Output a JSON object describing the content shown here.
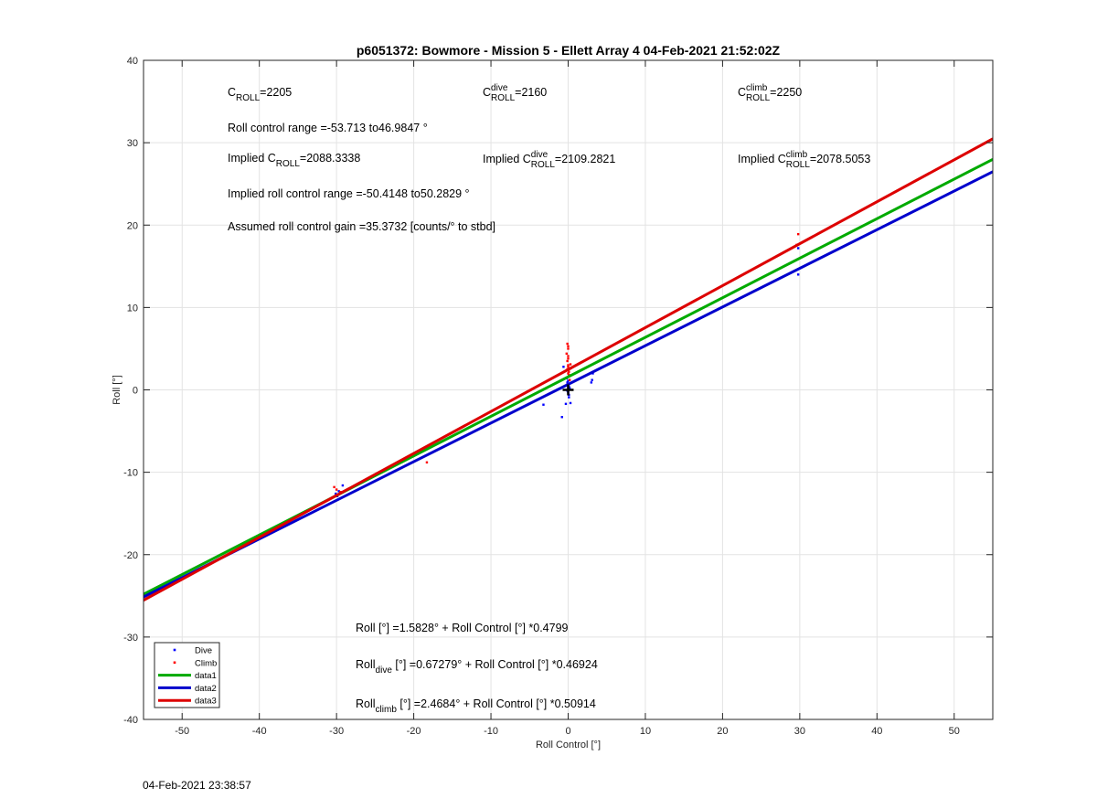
{
  "chart_data": {
    "type": "scatter",
    "title": "p6051372: Bowmore - Mission 5 - Ellett Array 4 04-Feb-2021 21:52:02Z",
    "xlabel": "Roll Control [°]",
    "ylabel": "Roll [°]",
    "xlim": [
      -55,
      55
    ],
    "ylim": [
      -40,
      40
    ],
    "xticks": [
      -50,
      -40,
      -30,
      -20,
      -10,
      0,
      10,
      20,
      30,
      40,
      50
    ],
    "yticks": [
      -40,
      -30,
      -20,
      -10,
      0,
      10,
      20,
      30,
      40
    ],
    "grid": true,
    "legend_location": "bottom-left",
    "series": [
      {
        "name": "Dive",
        "kind": "points",
        "color": "#0000ff",
        "points": [
          [
            -29.7,
            -12.3
          ],
          [
            -29.2,
            -11.6
          ],
          [
            -29.9,
            -12.9
          ],
          [
            -30.1,
            -12.6
          ],
          [
            -3.2,
            -1.8
          ],
          [
            -0.8,
            -3.3
          ],
          [
            -0.6,
            2.8
          ],
          [
            -0.2,
            1.4
          ],
          [
            -0.1,
            0.9
          ],
          [
            0,
            0.6
          ],
          [
            0,
            0.3
          ],
          [
            0,
            0
          ],
          [
            0,
            -0.3
          ],
          [
            0.1,
            -0.6
          ],
          [
            0.1,
            -0.9
          ],
          [
            0.2,
            0.2
          ],
          [
            0,
            1.1
          ],
          [
            -0.3,
            -1.7
          ],
          [
            0.3,
            -1.6
          ],
          [
            3.1,
            1.2
          ],
          [
            3.2,
            2.0
          ],
          [
            3.0,
            0.9
          ],
          [
            29.8,
            17.2
          ],
          [
            29.8,
            14.0
          ],
          [
            0.1,
            0.4
          ],
          [
            -0.1,
            -0.1
          ]
        ]
      },
      {
        "name": "Climb",
        "kind": "points",
        "color": "#ff0000",
        "points": [
          [
            -30.3,
            -11.8
          ],
          [
            -30.0,
            -12.1
          ],
          [
            -29.5,
            -12.4
          ],
          [
            -18.3,
            -8.8
          ],
          [
            -0.1,
            5.6
          ],
          [
            0,
            5.3
          ],
          [
            0,
            5.0
          ],
          [
            -0.2,
            4.4
          ],
          [
            0,
            4.1
          ],
          [
            0,
            3.8
          ],
          [
            -0.1,
            3.5
          ],
          [
            0,
            3.0
          ],
          [
            0,
            2.8
          ],
          [
            -0.1,
            2.5
          ],
          [
            0.1,
            2.2
          ],
          [
            0,
            2.0
          ],
          [
            0.1,
            1.8
          ],
          [
            0.3,
            2.6
          ],
          [
            0.2,
            1.2
          ],
          [
            29.8,
            18.9
          ],
          [
            29.6,
            17.6
          ],
          [
            0.3,
            3.1
          ]
        ]
      },
      {
        "name": "data1",
        "kind": "line",
        "color": "#00aa00",
        "intercept": 1.5828,
        "slope": 0.4799
      },
      {
        "name": "data2",
        "kind": "line",
        "color": "#0000cc",
        "intercept": 0.67279,
        "slope": 0.46924
      },
      {
        "name": "data3",
        "kind": "line",
        "color": "#dd0000",
        "intercept": 2.4684,
        "slope": 0.50914
      }
    ],
    "marker": {
      "x": 0,
      "y": 0,
      "color": "#000000"
    },
    "legend": [
      {
        "label": "Dive",
        "kind": "point",
        "color": "#0000ff"
      },
      {
        "label": "Climb",
        "kind": "point",
        "color": "#ff0000"
      },
      {
        "label": "data1",
        "kind": "line",
        "color": "#00aa00"
      },
      {
        "label": "data2",
        "kind": "line",
        "color": "#0000cc"
      },
      {
        "label": "data3",
        "kind": "line",
        "color": "#dd0000"
      }
    ],
    "annotations": [
      {
        "name": "c-roll",
        "parts": [
          {
            "t": "C"
          },
          {
            "t": "ROLL",
            "sub": true
          },
          {
            "t": "=2205"
          }
        ]
      },
      {
        "name": "c-roll-dive",
        "parts": [
          {
            "t": "C"
          },
          {
            "t": "dive",
            "sup": true
          },
          {
            "t": "ROLL",
            "sub": true
          },
          {
            "t": "=2160"
          }
        ]
      },
      {
        "name": "c-roll-climb",
        "parts": [
          {
            "t": "C"
          },
          {
            "t": "climb",
            "sup": true
          },
          {
            "t": "ROLL",
            "sub": true
          },
          {
            "t": "=2250"
          }
        ]
      },
      {
        "name": "roll-control-range",
        "parts": [
          {
            "t": "Roll control range =-53.713 to46.9847 °"
          }
        ]
      },
      {
        "name": "implied-c-roll",
        "parts": [
          {
            "t": "Implied C"
          },
          {
            "t": "ROLL",
            "sub": true
          },
          {
            "t": "=2088.3338"
          }
        ]
      },
      {
        "name": "implied-c-roll-dive",
        "parts": [
          {
            "t": "Implied C"
          },
          {
            "t": "dive",
            "sup": true
          },
          {
            "t": "ROLL",
            "sub": true
          },
          {
            "t": "=2109.2821"
          }
        ]
      },
      {
        "name": "implied-c-roll-climb",
        "parts": [
          {
            "t": "Implied C"
          },
          {
            "t": "climb",
            "sup": true
          },
          {
            "t": "ROLL",
            "sub": true
          },
          {
            "t": "=2078.5053"
          }
        ]
      },
      {
        "name": "implied-roll-control-range",
        "parts": [
          {
            "t": "Implied roll control range =-50.4148 to50.2829 °"
          }
        ]
      },
      {
        "name": "assumed-gain",
        "parts": [
          {
            "t": "Assumed roll control gain =35.3732 [counts/° to stbd]"
          }
        ]
      },
      {
        "name": "fit-all",
        "parts": [
          {
            "t": "Roll [°] =1.5828° + Roll Control [°] *0.4799"
          }
        ]
      },
      {
        "name": "fit-dive",
        "parts": [
          {
            "t": "Roll"
          },
          {
            "t": "dive",
            "sub": true
          },
          {
            "t": " [°] =0.67279° + Roll Control [°] *0.46924"
          }
        ]
      },
      {
        "name": "fit-climb",
        "parts": [
          {
            "t": "Roll"
          },
          {
            "t": "climb",
            "sub": true
          },
          {
            "t": " [°] =2.4684° + Roll Control [°] *0.50914"
          }
        ]
      }
    ]
  },
  "footer": {
    "timestamp": "04-Feb-2021 23:38:57"
  }
}
